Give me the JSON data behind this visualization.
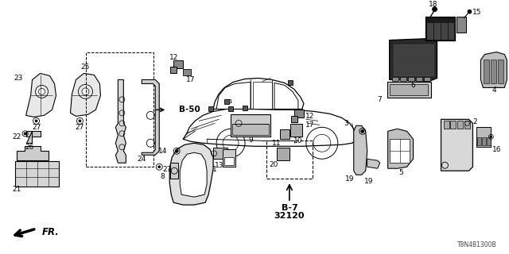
{
  "bg_color": "#ffffff",
  "line_color": "#000000",
  "footnote": "T8N4B1300B",
  "fr_label": "FR.",
  "b50_label": "B-50",
  "b7_label": "B-7",
  "b7_num": "32120",
  "fontsize_small": 5.5,
  "fontsize_label": 6.5,
  "fontsize_ref": 7.5
}
